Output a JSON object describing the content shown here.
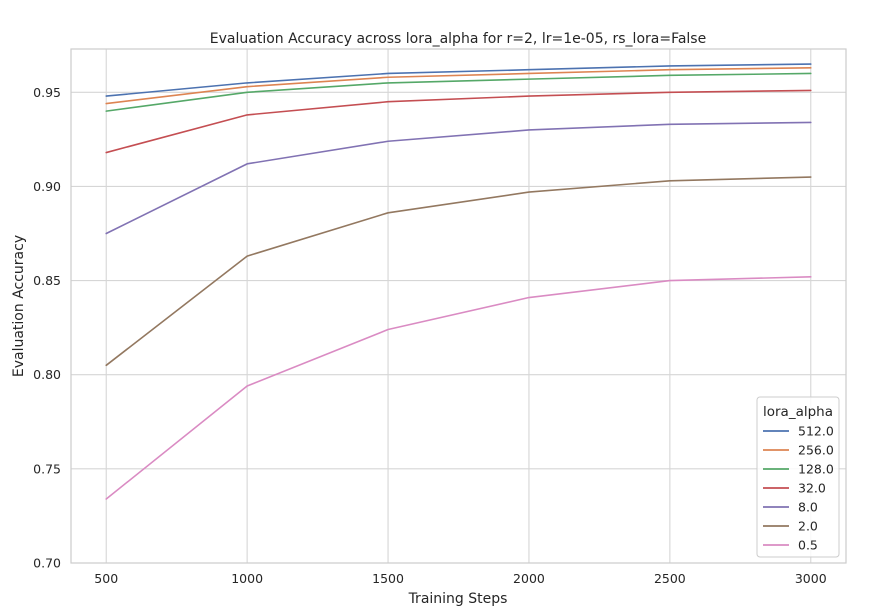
{
  "chart_data": {
    "type": "line",
    "title": "Evaluation Accuracy across lora_alpha for r=2, lr=1e-05, rs_lora=False",
    "xlabel": "Training Steps",
    "ylabel": "Evaluation Accuracy",
    "x": [
      500,
      1000,
      1500,
      2000,
      2500,
      3000
    ],
    "xlim": [
      375,
      3125
    ],
    "ylim": [
      0.7,
      0.973
    ],
    "xticks": [
      "500",
      "1000",
      "1500",
      "2000",
      "2500",
      "3000"
    ],
    "yticks": [
      "0.70",
      "0.75",
      "0.80",
      "0.85",
      "0.90",
      "0.95"
    ],
    "grid": true,
    "legend": {
      "title": "lora_alpha",
      "position": "lower-right"
    },
    "series": [
      {
        "name": "512.0",
        "color": "#4c72b0",
        "values": [
          0.948,
          0.955,
          0.96,
          0.962,
          0.964,
          0.965
        ]
      },
      {
        "name": "256.0",
        "color": "#dd8452",
        "values": [
          0.944,
          0.953,
          0.958,
          0.96,
          0.962,
          0.963
        ]
      },
      {
        "name": "128.0",
        "color": "#55a868",
        "values": [
          0.94,
          0.95,
          0.955,
          0.957,
          0.959,
          0.96
        ]
      },
      {
        "name": "32.0",
        "color": "#c44e52",
        "values": [
          0.918,
          0.938,
          0.945,
          0.948,
          0.95,
          0.951
        ]
      },
      {
        "name": "8.0",
        "color": "#8172b3",
        "values": [
          0.875,
          0.912,
          0.924,
          0.93,
          0.933,
          0.934
        ]
      },
      {
        "name": "2.0",
        "color": "#937860",
        "values": [
          0.805,
          0.863,
          0.886,
          0.897,
          0.903,
          0.905
        ]
      },
      {
        "name": "0.5",
        "color": "#da8bc3",
        "values": [
          0.734,
          0.794,
          0.824,
          0.841,
          0.85,
          0.852
        ]
      }
    ]
  }
}
